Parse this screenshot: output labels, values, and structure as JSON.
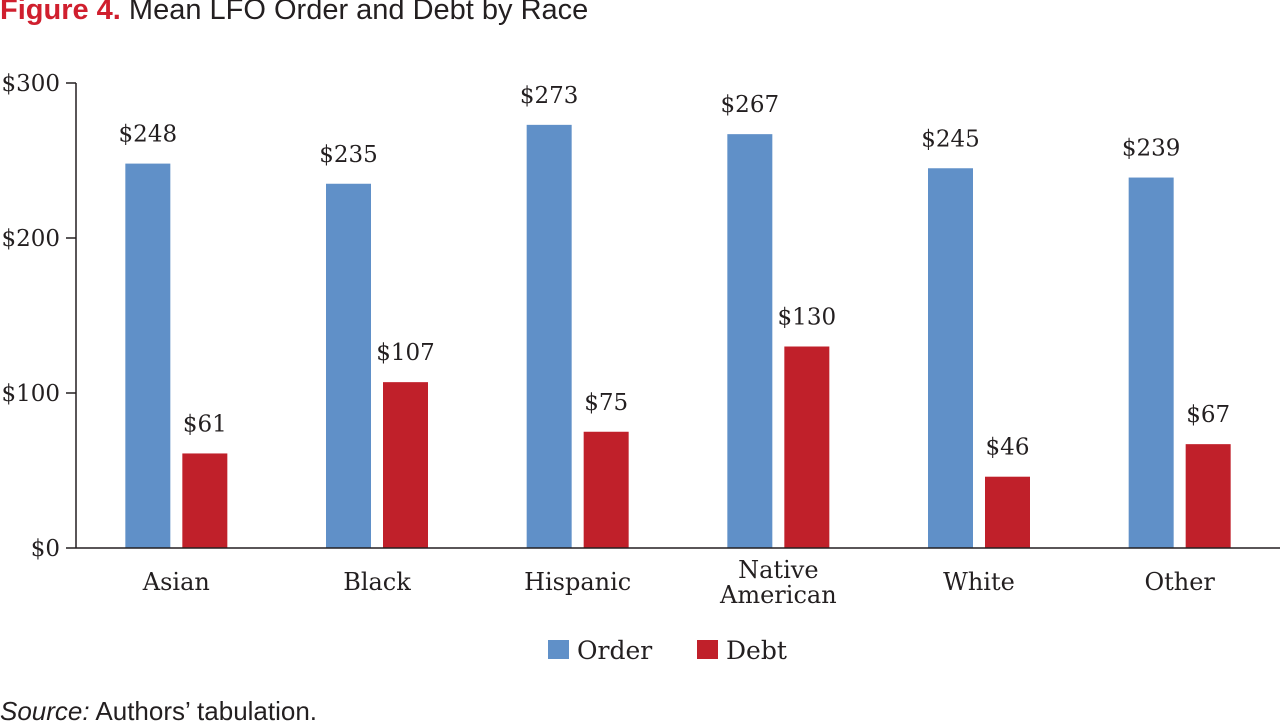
{
  "figure": {
    "label": "Figure 4.",
    "title": "Mean LFO Order and Debt by Race"
  },
  "source": {
    "label": "Source:",
    "text": "Authors’ tabulation."
  },
  "chart_data": {
    "type": "bar",
    "categories": [
      [
        "Asian"
      ],
      [
        "Black"
      ],
      [
        "Hispanic"
      ],
      [
        "Native",
        "American"
      ],
      [
        "White"
      ],
      [
        "Other"
      ]
    ],
    "series": [
      {
        "name": "Order",
        "color": "#6090c8",
        "values": [
          248,
          235,
          273,
          267,
          245,
          239
        ],
        "labels": [
          "$248",
          "$235",
          "$273",
          "$267",
          "$245",
          "$239"
        ]
      },
      {
        "name": "Debt",
        "color": "#c0202a",
        "values": [
          61,
          107,
          75,
          130,
          46,
          67
        ],
        "labels": [
          "$61",
          "$107",
          "$75",
          "$130",
          "$46",
          "$67"
        ]
      }
    ],
    "ylim": [
      0,
      300
    ],
    "yticks": [
      0,
      100,
      200,
      300
    ],
    "ytick_labels": [
      "$0",
      "$100",
      "$200",
      "$300"
    ],
    "xlabel": "",
    "ylabel": "",
    "grid": false,
    "legend": "bottom-center"
  }
}
